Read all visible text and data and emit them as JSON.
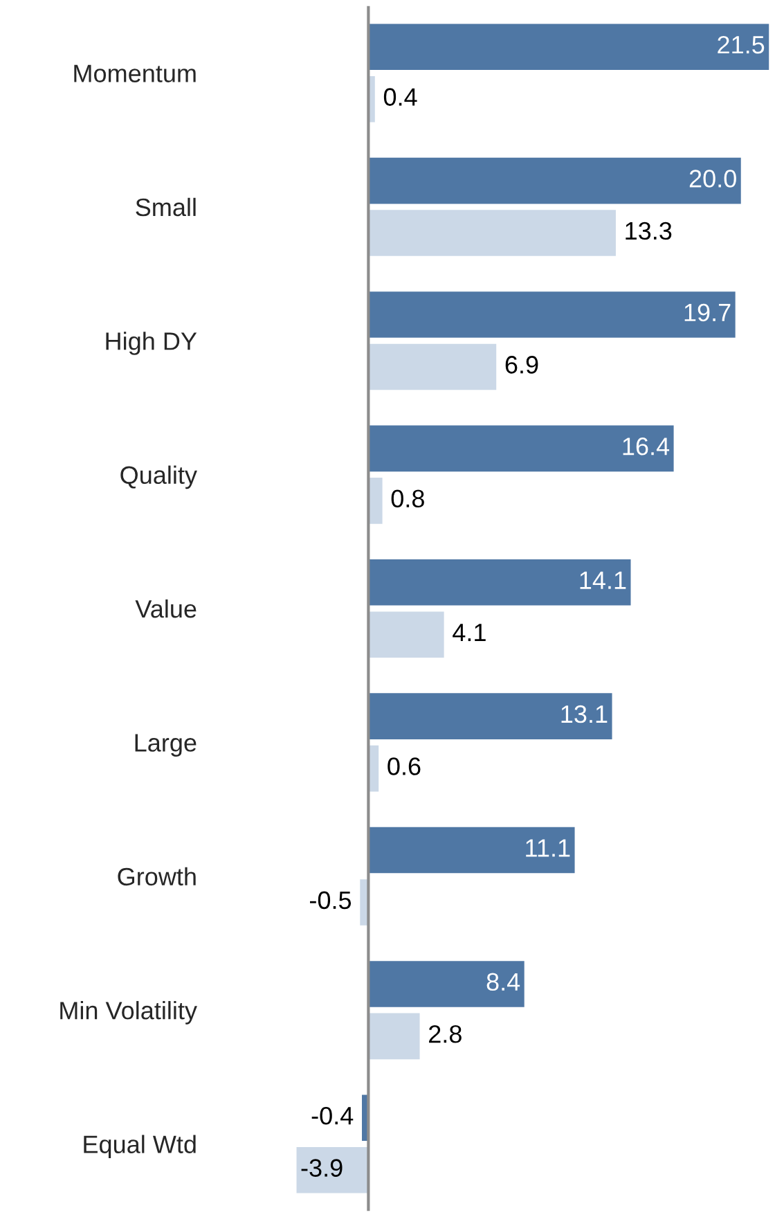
{
  "chart_data": {
    "type": "bar",
    "orientation": "horizontal",
    "grid": false,
    "legend": false,
    "tick_labels": "y",
    "categories": [
      "Momentum",
      "Small",
      "High DY",
      "Quality",
      "Value",
      "Large",
      "Growth",
      "Min Volatility",
      "Equal Wtd"
    ],
    "series": [
      {
        "color": "#4f77a4",
        "values": [
          21.5,
          20.0,
          19.7,
          16.4,
          14.1,
          13.1,
          11.1,
          8.4,
          -0.4
        ],
        "value_labels": [
          "21.5",
          "20.0",
          "19.7",
          "16.4",
          "14.1",
          "13.1",
          "11.1",
          "8.4",
          "-0.4"
        ]
      },
      {
        "color": "#cbd8e7",
        "values": [
          0.4,
          13.3,
          6.9,
          0.8,
          4.1,
          0.6,
          -0.5,
          2.8,
          -3.9
        ],
        "value_labels": [
          "0.4",
          "13.3",
          "6.9",
          "0.8",
          "4.1",
          "0.6",
          "-0.5",
          "2.8",
          "-3.9"
        ]
      }
    ]
  }
}
